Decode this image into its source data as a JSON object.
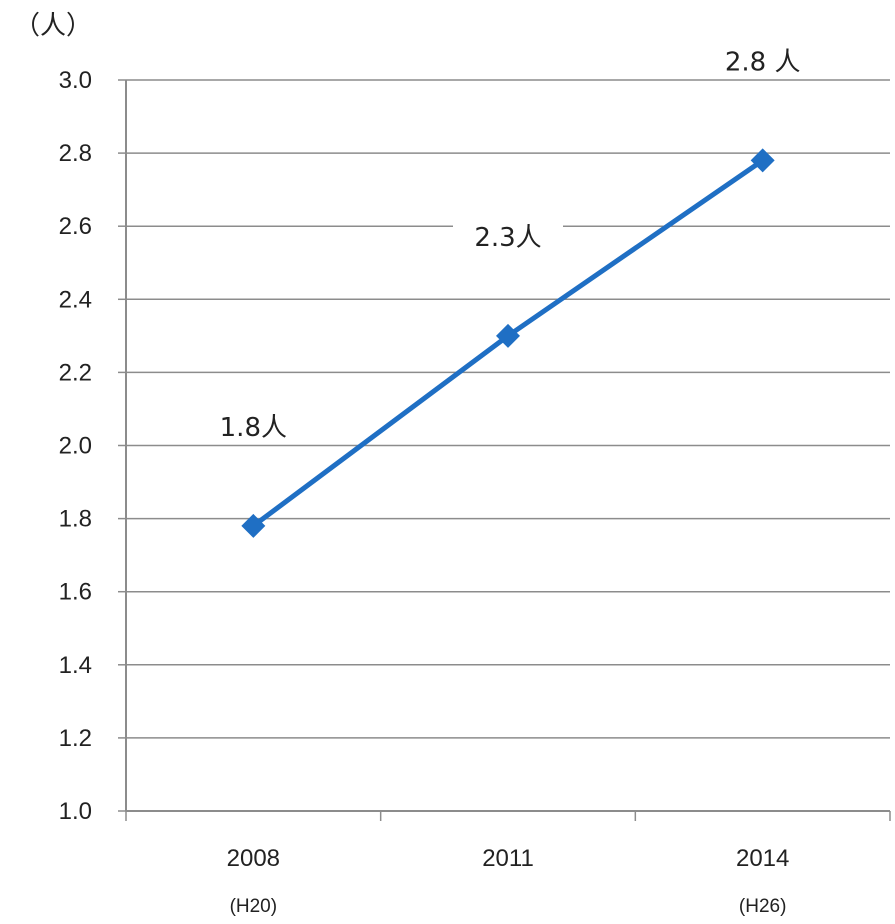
{
  "chart_data": {
    "type": "line",
    "ylabel": "（人）",
    "ylim": [
      1.0,
      3.0
    ],
    "ytick_step": 0.2,
    "yticks": [
      "1.0",
      "1.2",
      "1.4",
      "1.6",
      "1.8",
      "2.0",
      "2.2",
      "2.4",
      "2.6",
      "2.8",
      "3.0"
    ],
    "categories": [
      "2008",
      "2011",
      "2014"
    ],
    "category_sublabels": [
      "(H20)",
      "",
      "(H26)"
    ],
    "series": [
      {
        "values": [
          1.78,
          2.3,
          2.78
        ],
        "data_labels": [
          "1.8人",
          "2.3人",
          "2.8 人"
        ],
        "color": "#1f6fc4"
      }
    ],
    "grid": true,
    "legend": "none"
  }
}
